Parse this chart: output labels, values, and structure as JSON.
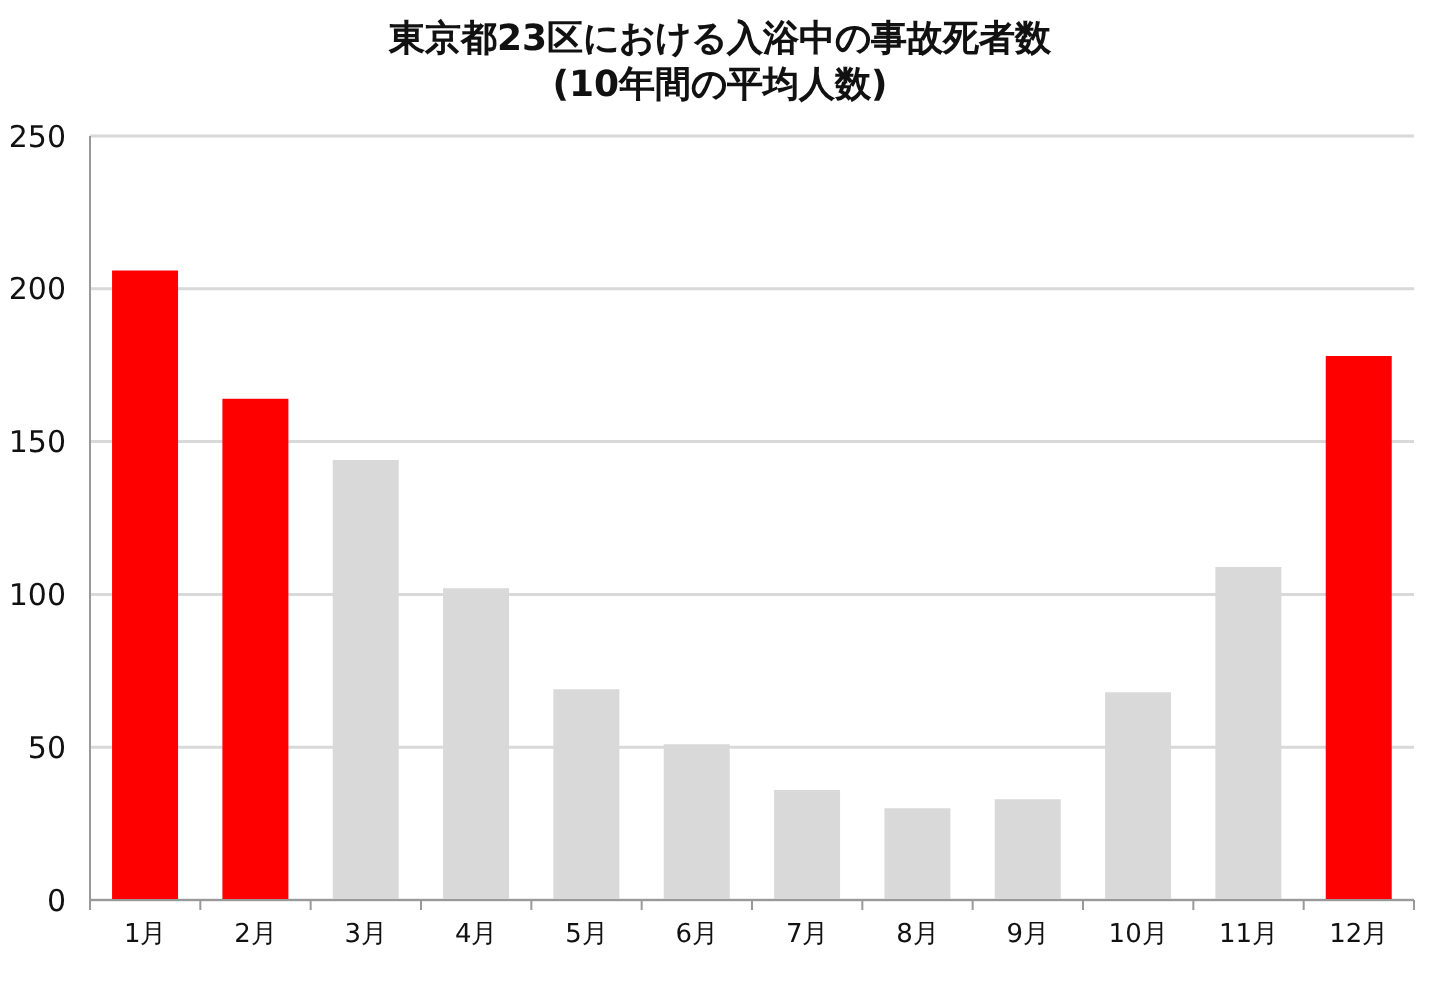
{
  "chart_data": {
    "type": "bar",
    "title": "東京都23区における入浴中の事故死者数",
    "subtitle": "(10年間の平均人数)",
    "categories": [
      "1月",
      "2月",
      "3月",
      "4月",
      "5月",
      "6月",
      "7月",
      "8月",
      "9月",
      "10月",
      "11月",
      "12月"
    ],
    "values": [
      206,
      164,
      144,
      102,
      69,
      51,
      36,
      30,
      33,
      68,
      109,
      178
    ],
    "colors": [
      "#ff0000",
      "#ff0000",
      "#d9d9d9",
      "#d9d9d9",
      "#d9d9d9",
      "#d9d9d9",
      "#d9d9d9",
      "#d9d9d9",
      "#d9d9d9",
      "#d9d9d9",
      "#d9d9d9",
      "#ff0000"
    ],
    "ylim": [
      0,
      250
    ],
    "yticks": [
      0,
      50,
      100,
      150,
      200,
      250
    ],
    "grid": "y"
  }
}
